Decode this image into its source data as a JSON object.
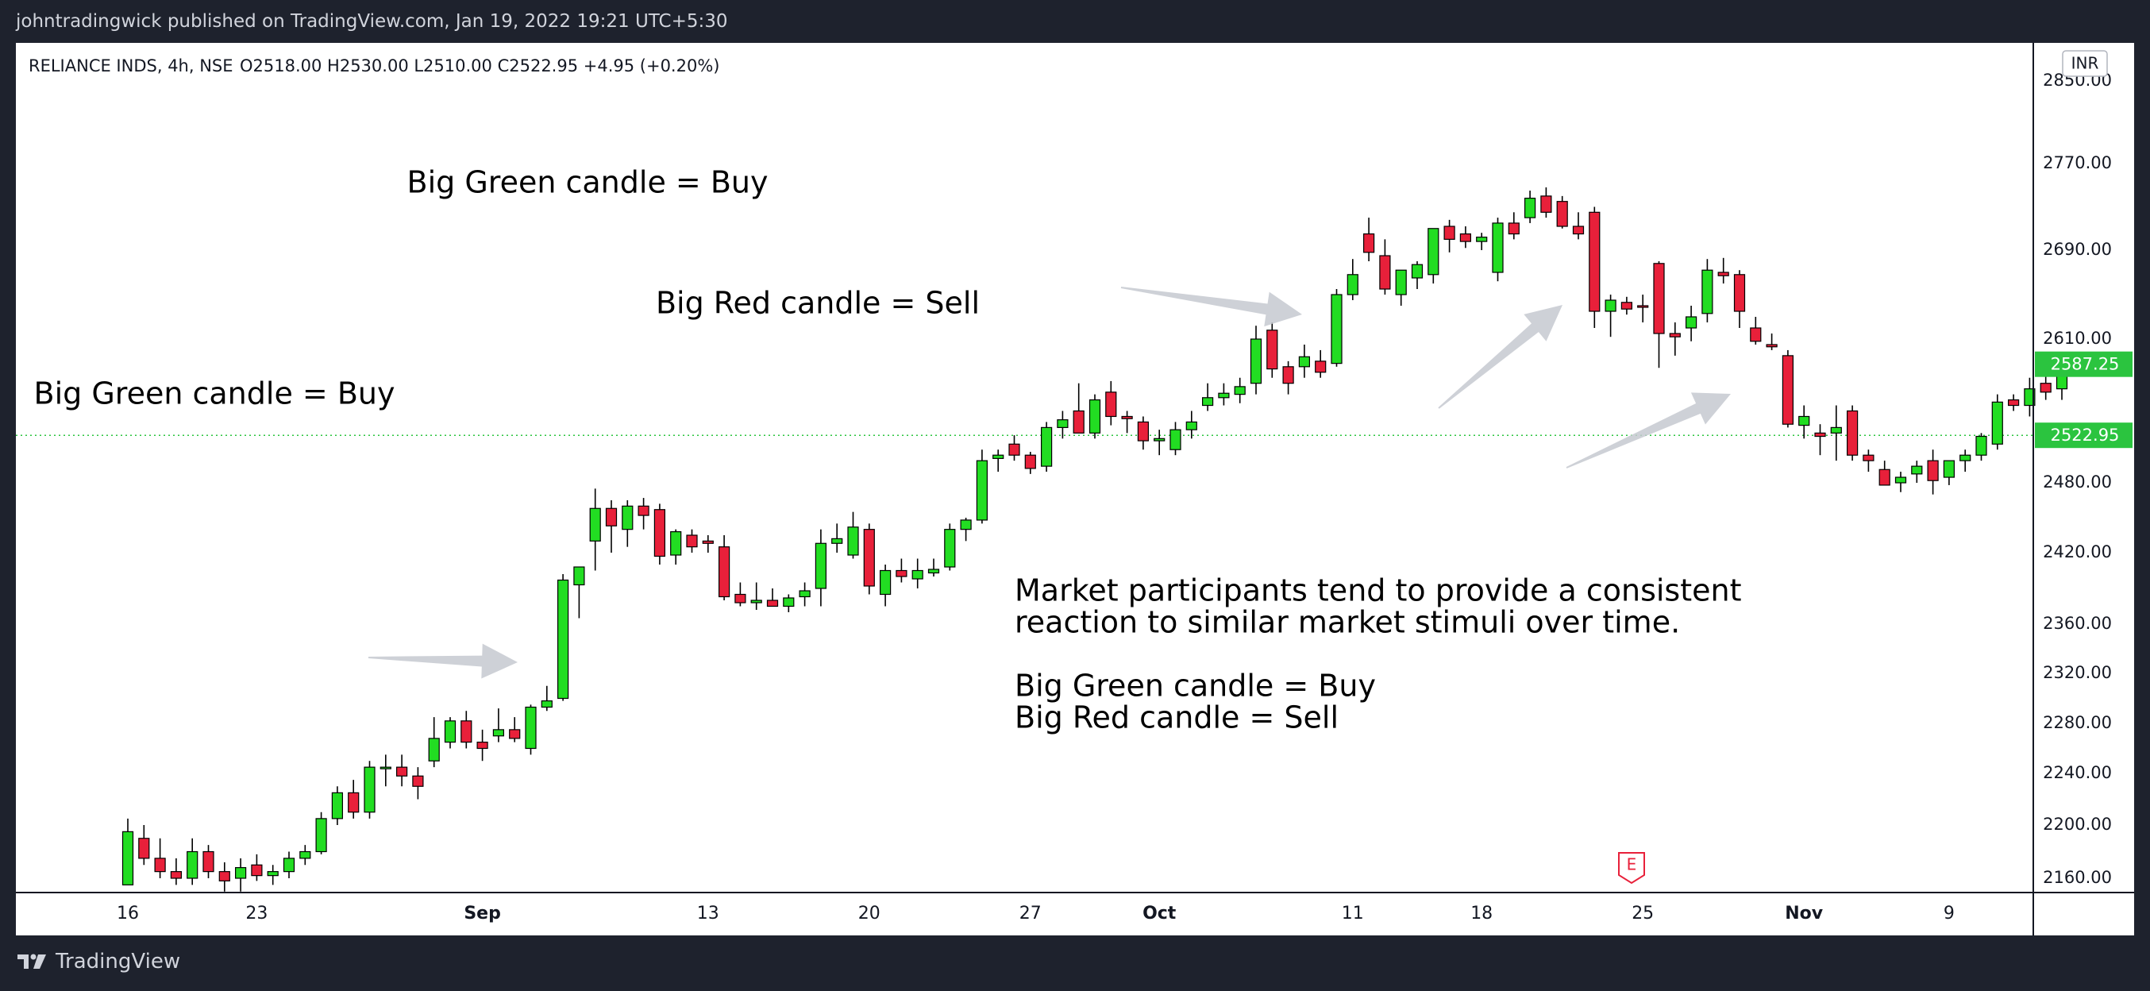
{
  "header": {
    "publisher_line": "johntradingwick published on TradingView.com, Jan 19, 2022 19:21 UTC+5:30"
  },
  "footer": {
    "brand": "TradingView"
  },
  "chart_data": {
    "type": "candlestick",
    "symbol": "RELIANCE INDS, 4h, NSE",
    "ohlc_legend": "O2518.00  H2530.00  L2510.00  C2522.95  +4.95 (+0.20%)",
    "currency": "INR",
    "y_ticks": [
      2160,
      2200,
      2240,
      2280,
      2320,
      2360,
      2420,
      2480,
      2610,
      2690,
      2770,
      2850
    ],
    "y_tick_labels": [
      "2160.00",
      "2200.00",
      "2240.00",
      "2280.00",
      "2320.00",
      "2360.00",
      "2420.00",
      "2480.00",
      "2610.00",
      "2690.00",
      "2770.00",
      "2850.00"
    ],
    "x_ticks": [
      {
        "label": "16",
        "bar": 0,
        "bold": false
      },
      {
        "label": "23",
        "bar": 8,
        "bold": false
      },
      {
        "label": "Sep",
        "bar": 22,
        "bold": true
      },
      {
        "label": "13",
        "bar": 36,
        "bold": false
      },
      {
        "label": "20",
        "bar": 46,
        "bold": false
      },
      {
        "label": "27",
        "bar": 56,
        "bold": false
      },
      {
        "label": "Oct",
        "bar": 64,
        "bold": true
      },
      {
        "label": "11",
        "bar": 76,
        "bold": false
      },
      {
        "label": "18",
        "bar": 84,
        "bold": false
      },
      {
        "label": "25",
        "bar": 94,
        "bold": false
      },
      {
        "label": "Nov",
        "bar": 104,
        "bold": true
      },
      {
        "label": "9",
        "bar": 113,
        "bold": false
      }
    ],
    "price_badges": [
      {
        "label": "2587.25",
        "value": 2587.25,
        "color": "#2bc43f"
      },
      {
        "label": "2522.95",
        "value": 2522.95,
        "color": "#2bc43f"
      }
    ],
    "current_price_line": 2522.95,
    "bull_color": "#22dd22",
    "bear_color": "#e8203a",
    "candles": [
      [
        2155,
        2205,
        2160,
        2195
      ],
      [
        2190,
        2200,
        2170,
        2175
      ],
      [
        2175,
        2190,
        2160,
        2165
      ],
      [
        2165,
        2175,
        2155,
        2160
      ],
      [
        2160,
        2190,
        2155,
        2180
      ],
      [
        2180,
        2185,
        2160,
        2165
      ],
      [
        2165,
        2172,
        2150,
        2158
      ],
      [
        2160,
        2175,
        2150,
        2168
      ],
      [
        2170,
        2178,
        2158,
        2162
      ],
      [
        2162,
        2170,
        2155,
        2165
      ],
      [
        2165,
        2180,
        2160,
        2175
      ],
      [
        2175,
        2185,
        2170,
        2180
      ],
      [
        2180,
        2210,
        2178,
        2205
      ],
      [
        2205,
        2230,
        2200,
        2225
      ],
      [
        2225,
        2235,
        2205,
        2210
      ],
      [
        2210,
        2250,
        2205,
        2245
      ],
      [
        2245,
        2255,
        2230,
        2245
      ],
      [
        2245,
        2255,
        2230,
        2238
      ],
      [
        2238,
        2245,
        2220,
        2230
      ],
      [
        2250,
        2285,
        2245,
        2268
      ],
      [
        2265,
        2285,
        2260,
        2282
      ],
      [
        2282,
        2290,
        2260,
        2265
      ],
      [
        2265,
        2275,
        2250,
        2260
      ],
      [
        2270,
        2292,
        2265,
        2275
      ],
      [
        2275,
        2285,
        2265,
        2268
      ],
      [
        2260,
        2295,
        2255,
        2293
      ],
      [
        2293,
        2310,
        2290,
        2298
      ],
      [
        2300,
        2402,
        2298,
        2397
      ],
      [
        2393,
        2408,
        2365,
        2408
      ],
      [
        2430,
        2475,
        2405,
        2458
      ],
      [
        2458,
        2465,
        2420,
        2443
      ],
      [
        2440,
        2465,
        2425,
        2460
      ],
      [
        2460,
        2467,
        2440,
        2452
      ],
      [
        2457,
        2462,
        2410,
        2417
      ],
      [
        2418,
        2440,
        2410,
        2438
      ],
      [
        2435,
        2440,
        2420,
        2425
      ],
      [
        2430,
        2435,
        2420,
        2428
      ],
      [
        2425,
        2435,
        2380,
        2383
      ],
      [
        2385,
        2395,
        2375,
        2378
      ],
      [
        2378,
        2395,
        2372,
        2380
      ],
      [
        2380,
        2390,
        2375,
        2375
      ],
      [
        2375,
        2385,
        2370,
        2382
      ],
      [
        2383,
        2395,
        2375,
        2388
      ],
      [
        2390,
        2440,
        2375,
        2428
      ],
      [
        2428,
        2445,
        2420,
        2432
      ],
      [
        2418,
        2455,
        2415,
        2442
      ],
      [
        2440,
        2445,
        2385,
        2392
      ],
      [
        2385,
        2410,
        2375,
        2405
      ],
      [
        2405,
        2415,
        2395,
        2400
      ],
      [
        2398,
        2415,
        2390,
        2405
      ],
      [
        2403,
        2415,
        2400,
        2406
      ],
      [
        2408,
        2445,
        2405,
        2440
      ],
      [
        2440,
        2450,
        2430,
        2448
      ],
      [
        2448,
        2510,
        2445,
        2500
      ],
      [
        2502,
        2510,
        2490,
        2505
      ],
      [
        2515,
        2523,
        2500,
        2505
      ],
      [
        2505,
        2508,
        2488,
        2493
      ],
      [
        2495,
        2535,
        2490,
        2530
      ],
      [
        2530,
        2545,
        2520,
        2537
      ],
      [
        2545,
        2570,
        2525,
        2525
      ],
      [
        2525,
        2560,
        2520,
        2555
      ],
      [
        2562,
        2572,
        2532,
        2540
      ],
      [
        2540,
        2545,
        2525,
        2538
      ],
      [
        2535,
        2540,
        2510,
        2518
      ],
      [
        2518,
        2528,
        2505,
        2520
      ],
      [
        2510,
        2535,
        2505,
        2528
      ],
      [
        2528,
        2545,
        2520,
        2535
      ],
      [
        2550,
        2570,
        2545,
        2557
      ],
      [
        2557,
        2570,
        2550,
        2561
      ],
      [
        2560,
        2575,
        2552,
        2567
      ],
      [
        2570,
        2622,
        2560,
        2610
      ],
      [
        2618,
        2625,
        2575,
        2583
      ],
      [
        2585,
        2590,
        2560,
        2570
      ],
      [
        2585,
        2605,
        2575,
        2594
      ],
      [
        2590,
        2600,
        2575,
        2580
      ],
      [
        2588,
        2655,
        2585,
        2650
      ],
      [
        2650,
        2682,
        2645,
        2668
      ],
      [
        2705,
        2720,
        2680,
        2688
      ],
      [
        2685,
        2700,
        2650,
        2655
      ],
      [
        2650,
        2670,
        2640,
        2672
      ],
      [
        2665,
        2680,
        2655,
        2677
      ],
      [
        2668,
        2705,
        2660,
        2710
      ],
      [
        2712,
        2718,
        2688,
        2700
      ],
      [
        2705,
        2712,
        2692,
        2698
      ],
      [
        2698,
        2706,
        2690,
        2702
      ],
      [
        2670,
        2720,
        2662,
        2715
      ],
      [
        2715,
        2725,
        2700,
        2705
      ],
      [
        2720,
        2745,
        2715,
        2738
      ],
      [
        2740,
        2748,
        2720,
        2725
      ],
      [
        2735,
        2740,
        2710,
        2712
      ],
      [
        2712,
        2725,
        2700,
        2705
      ],
      [
        2725,
        2730,
        2620,
        2635
      ],
      [
        2635,
        2650,
        2612,
        2645
      ],
      [
        2643,
        2648,
        2632,
        2637
      ],
      [
        2640,
        2650,
        2625,
        2639
      ],
      [
        2678,
        2680,
        2584,
        2615
      ],
      [
        2615,
        2625,
        2595,
        2612
      ],
      [
        2620,
        2640,
        2608,
        2630
      ],
      [
        2633,
        2682,
        2625,
        2672
      ],
      [
        2670,
        2683,
        2660,
        2667
      ],
      [
        2668,
        2672,
        2620,
        2635
      ],
      [
        2620,
        2630,
        2605,
        2608
      ],
      [
        2605,
        2615,
        2600,
        2603
      ],
      [
        2595,
        2600,
        2530,
        2533
      ],
      [
        2532,
        2550,
        2520,
        2540
      ],
      [
        2525,
        2533,
        2505,
        2522
      ],
      [
        2525,
        2550,
        2500,
        2530
      ],
      [
        2545,
        2550,
        2500,
        2505
      ],
      [
        2505,
        2510,
        2490,
        2500
      ],
      [
        2492,
        2500,
        2478,
        2478
      ],
      [
        2480,
        2490,
        2472,
        2485
      ],
      [
        2488,
        2500,
        2480,
        2495
      ],
      [
        2500,
        2510,
        2470,
        2482
      ],
      [
        2485,
        2500,
        2478,
        2500
      ],
      [
        2500,
        2510,
        2490,
        2505
      ],
      [
        2505,
        2525,
        2500,
        2522
      ],
      [
        2515,
        2560,
        2510,
        2553
      ],
      [
        2555,
        2560,
        2545,
        2550
      ],
      [
        2550,
        2575,
        2540,
        2565
      ],
      [
        2570,
        2580,
        2555,
        2562
      ],
      [
        2565,
        2595,
        2555,
        2587
      ]
    ],
    "annotations": [
      {
        "text": "Big Green candle = Buy",
        "x": 250,
        "y": 444
      },
      {
        "text": "Big Green candle = Buy",
        "x": 720,
        "y": 178
      },
      {
        "text": "Big Red candle = Sell",
        "x": 1010,
        "y": 330
      }
    ],
    "note_lines": [
      "Market participants tend to provide a consistent",
      "reaction to similar market stimuli over time.",
      "Big Green candle = Buy",
      "Big Red candle = Sell"
    ],
    "event_marker": "E"
  }
}
